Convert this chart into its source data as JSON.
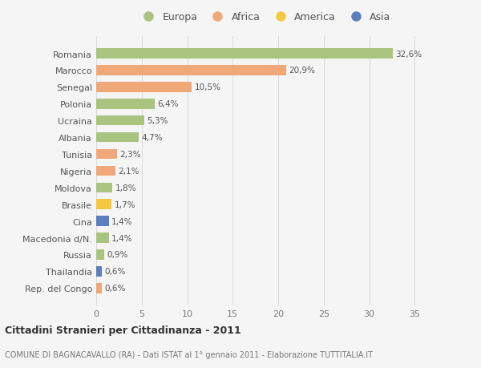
{
  "categories": [
    "Romania",
    "Marocco",
    "Senegal",
    "Polonia",
    "Ucraina",
    "Albania",
    "Tunisia",
    "Nigeria",
    "Moldova",
    "Brasile",
    "Cina",
    "Macedonia d/N.",
    "Russia",
    "Thailandia",
    "Rep. del Congo"
  ],
  "values": [
    32.6,
    20.9,
    10.5,
    6.4,
    5.3,
    4.7,
    2.3,
    2.1,
    1.8,
    1.7,
    1.4,
    1.4,
    0.9,
    0.6,
    0.6
  ],
  "labels": [
    "32,6%",
    "20,9%",
    "10,5%",
    "6,4%",
    "5,3%",
    "4,7%",
    "2,3%",
    "2,1%",
    "1,8%",
    "1,7%",
    "1,4%",
    "1,4%",
    "0,9%",
    "0,6%",
    "0,6%"
  ],
  "colors": [
    "#a8c47e",
    "#f0a878",
    "#f0a878",
    "#a8c47e",
    "#a8c47e",
    "#a8c47e",
    "#f0a878",
    "#f0a878",
    "#a8c47e",
    "#f5c842",
    "#5b7fbf",
    "#a8c47e",
    "#a8c47e",
    "#5b7fbf",
    "#f0a878"
  ],
  "legend_labels": [
    "Europa",
    "Africa",
    "America",
    "Asia"
  ],
  "legend_colors": [
    "#a8c47e",
    "#f0a878",
    "#f5c842",
    "#5b7fbf"
  ],
  "title1": "Cittadini Stranieri per Cittadinanza - 2011",
  "title2": "COMUNE DI BAGNACAVALLO (RA) - Dati ISTAT al 1° gennaio 2011 - Elaborazione TUTTITALIA.IT",
  "xlim": [
    0,
    37
  ],
  "xticks": [
    0,
    5,
    10,
    15,
    20,
    25,
    30,
    35
  ],
  "background_color": "#f5f5f5",
  "grid_color": "#dddddd"
}
